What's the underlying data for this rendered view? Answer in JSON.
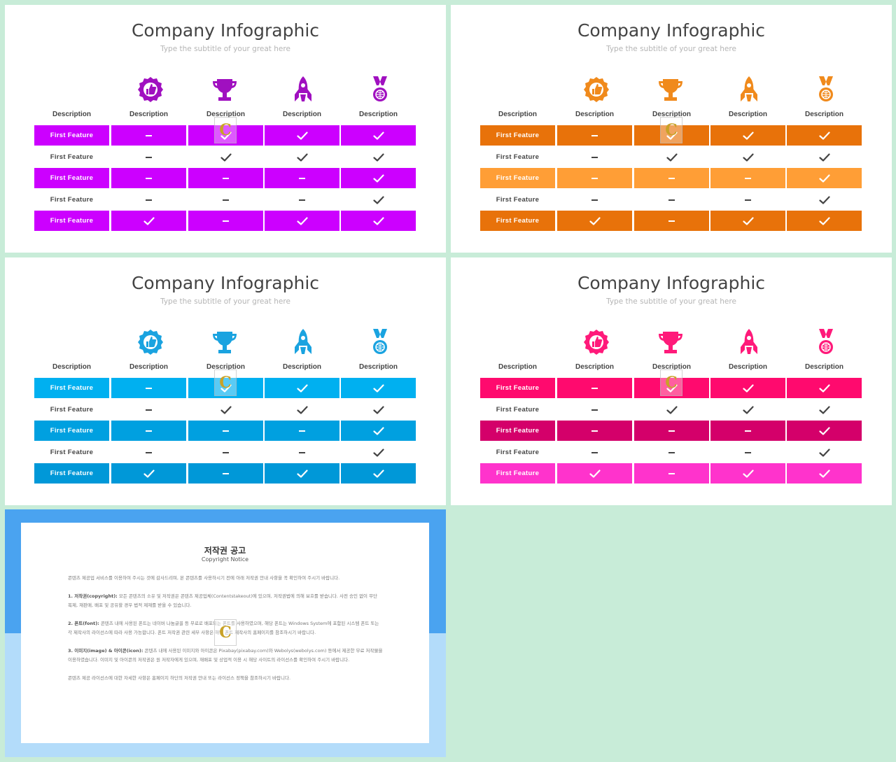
{
  "slides": [
    {
      "title": "Company Infographic",
      "subtitle": "Type the subtitle of your great here",
      "icon_color": "#a010c0",
      "mark_color": "#444444",
      "headers": [
        "Description",
        "Description",
        "Description",
        "Description",
        "Description"
      ],
      "icons": [
        "award-badge-icon",
        "trophy-icon",
        "rocket-icon",
        "medal-icon"
      ],
      "row_colors": [
        "#cc00ff",
        "",
        "#cc00ff",
        "",
        "#cc00ff"
      ],
      "rows": [
        {
          "label": "First  Feature",
          "marks": [
            "dash",
            "check",
            "check",
            "check"
          ]
        },
        {
          "label": "First  Feature",
          "marks": [
            "dash",
            "check",
            "check",
            "check"
          ]
        },
        {
          "label": "First  Feature",
          "marks": [
            "dash",
            "dash",
            "dash",
            "check"
          ]
        },
        {
          "label": "First  Feature",
          "marks": [
            "dash",
            "dash",
            "dash",
            "check"
          ]
        },
        {
          "label": "First  Feature",
          "marks": [
            "check",
            "dash",
            "check",
            "check"
          ]
        }
      ]
    },
    {
      "title": "Company Infographic",
      "subtitle": "Type the subtitle of your great here",
      "icon_color": "#f08a1c",
      "mark_color": "#444444",
      "headers": [
        "Description",
        "Description",
        "Description",
        "Description",
        "Description"
      ],
      "icons": [
        "award-badge-icon",
        "trophy-icon",
        "rocket-icon",
        "medal-icon"
      ],
      "row_colors": [
        "#e8720a",
        "",
        "#ff9e36",
        "",
        "#e8720a"
      ],
      "rows": [
        {
          "label": "First  Feature",
          "marks": [
            "dash",
            "check",
            "check",
            "check"
          ]
        },
        {
          "label": "First  Feature",
          "marks": [
            "dash",
            "check",
            "check",
            "check"
          ]
        },
        {
          "label": "First  Feature",
          "marks": [
            "dash",
            "dash",
            "dash",
            "check"
          ]
        },
        {
          "label": "First  Feature",
          "marks": [
            "dash",
            "dash",
            "dash",
            "check"
          ]
        },
        {
          "label": "First  Feature",
          "marks": [
            "check",
            "dash",
            "check",
            "check"
          ]
        }
      ]
    },
    {
      "title": "Company Infographic",
      "subtitle": "Type the subtitle of your great here",
      "icon_color": "#1aa3e0",
      "mark_color": "#444444",
      "headers": [
        "Description",
        "Description",
        "Description",
        "Description",
        "Description"
      ],
      "icons": [
        "award-badge-icon",
        "trophy-icon",
        "rocket-icon",
        "medal-icon"
      ],
      "row_colors": [
        "#00b0f0",
        "",
        "#00a0e0",
        "",
        "#0098d8"
      ],
      "rows": [
        {
          "label": "First  Feature",
          "marks": [
            "dash",
            "check",
            "check",
            "check"
          ]
        },
        {
          "label": "First  Feature",
          "marks": [
            "dash",
            "check",
            "check",
            "check"
          ]
        },
        {
          "label": "First  Feature",
          "marks": [
            "dash",
            "dash",
            "dash",
            "check"
          ]
        },
        {
          "label": "First  Feature",
          "marks": [
            "dash",
            "dash",
            "dash",
            "check"
          ]
        },
        {
          "label": "First  Feature",
          "marks": [
            "check",
            "dash",
            "check",
            "check"
          ]
        }
      ]
    },
    {
      "title": "Company Infographic",
      "subtitle": "Type the subtitle of your great here",
      "icon_color": "#ff1a7a",
      "mark_color": "#444444",
      "headers": [
        "Description",
        "Description",
        "Description",
        "Description",
        "Description"
      ],
      "icons": [
        "award-badge-icon",
        "trophy-icon",
        "rocket-icon",
        "medal-icon"
      ],
      "row_colors": [
        "#ff0a6e",
        "",
        "#d4006a",
        "",
        "#ff33cc"
      ],
      "rows": [
        {
          "label": "First  Feature",
          "marks": [
            "dash",
            "check",
            "check",
            "check"
          ]
        },
        {
          "label": "First  Feature",
          "marks": [
            "dash",
            "check",
            "check",
            "check"
          ]
        },
        {
          "label": "First  Feature",
          "marks": [
            "dash",
            "dash",
            "dash",
            "check"
          ]
        },
        {
          "label": "First  Feature",
          "marks": [
            "dash",
            "dash",
            "dash",
            "check"
          ]
        },
        {
          "label": "First  Feature",
          "marks": [
            "check",
            "dash",
            "check",
            "check"
          ]
        }
      ]
    }
  ],
  "watermark": {
    "letter": "C"
  },
  "notice": {
    "title": "저작권 공고",
    "subtitle": "Copyright Notice",
    "intro": "콘텐츠 제공업 서비스를 이용하여 주시는 것에 감사드리며, 본 콘텐츠를 사용하시기 전에 아래 저작권 안내 사항을 꼭 확인하여 주시기 바랍니다.",
    "p1_head": "1. 저작권(copyright):",
    "p1_body": "모든 콘텐츠의 소유 및 저작권은 콘텐츠 제공업체(Contentstakeout)에 있으며, 저작권법에 의해 보호를 받습니다. 사전 승인 없이 무단 복제, 재판매, 배포 및 공유할 경우 법적 제재를 받을 수 있습니다.",
    "p2_head": "2. 폰트(font):",
    "p2_body": "콘텐츠 내에 사용된 폰트는 네이버 나눔글꼴 등 무료로 배포되는 폰트를 사용하였으며, 해당 폰트는 Windows System에 포함된 시스템 폰트 또는 각 제작사의 라이선스에 따라 사용 가능합니다. 폰트 저작권 관련 세부 사항은 해당 폰트 제작사의 홈페이지를 참조하시기 바랍니다.",
    "p3_head": "3. 이미지(image) & 아이콘(icon):",
    "p3_body": "콘텐츠 내에 사용된 이미지와 아이콘은 Pixabay(pixabay.com)와 Webolys(webolys.com) 등에서 제공한 무료 저작물을 이용하였습니다. 이미지 및 아이콘의 저작권은 원 저작자에게 있으며, 재배포 및 상업적 이용 시 해당 사이트의 라이선스를 확인하여 주시기 바랍니다.",
    "outro": "콘텐츠 제공 라이선스에 대한 자세한 사항은 홈페이지 하단의 저작권 안내 또는 라이선스 정책을 참조하시기 바랍니다."
  }
}
